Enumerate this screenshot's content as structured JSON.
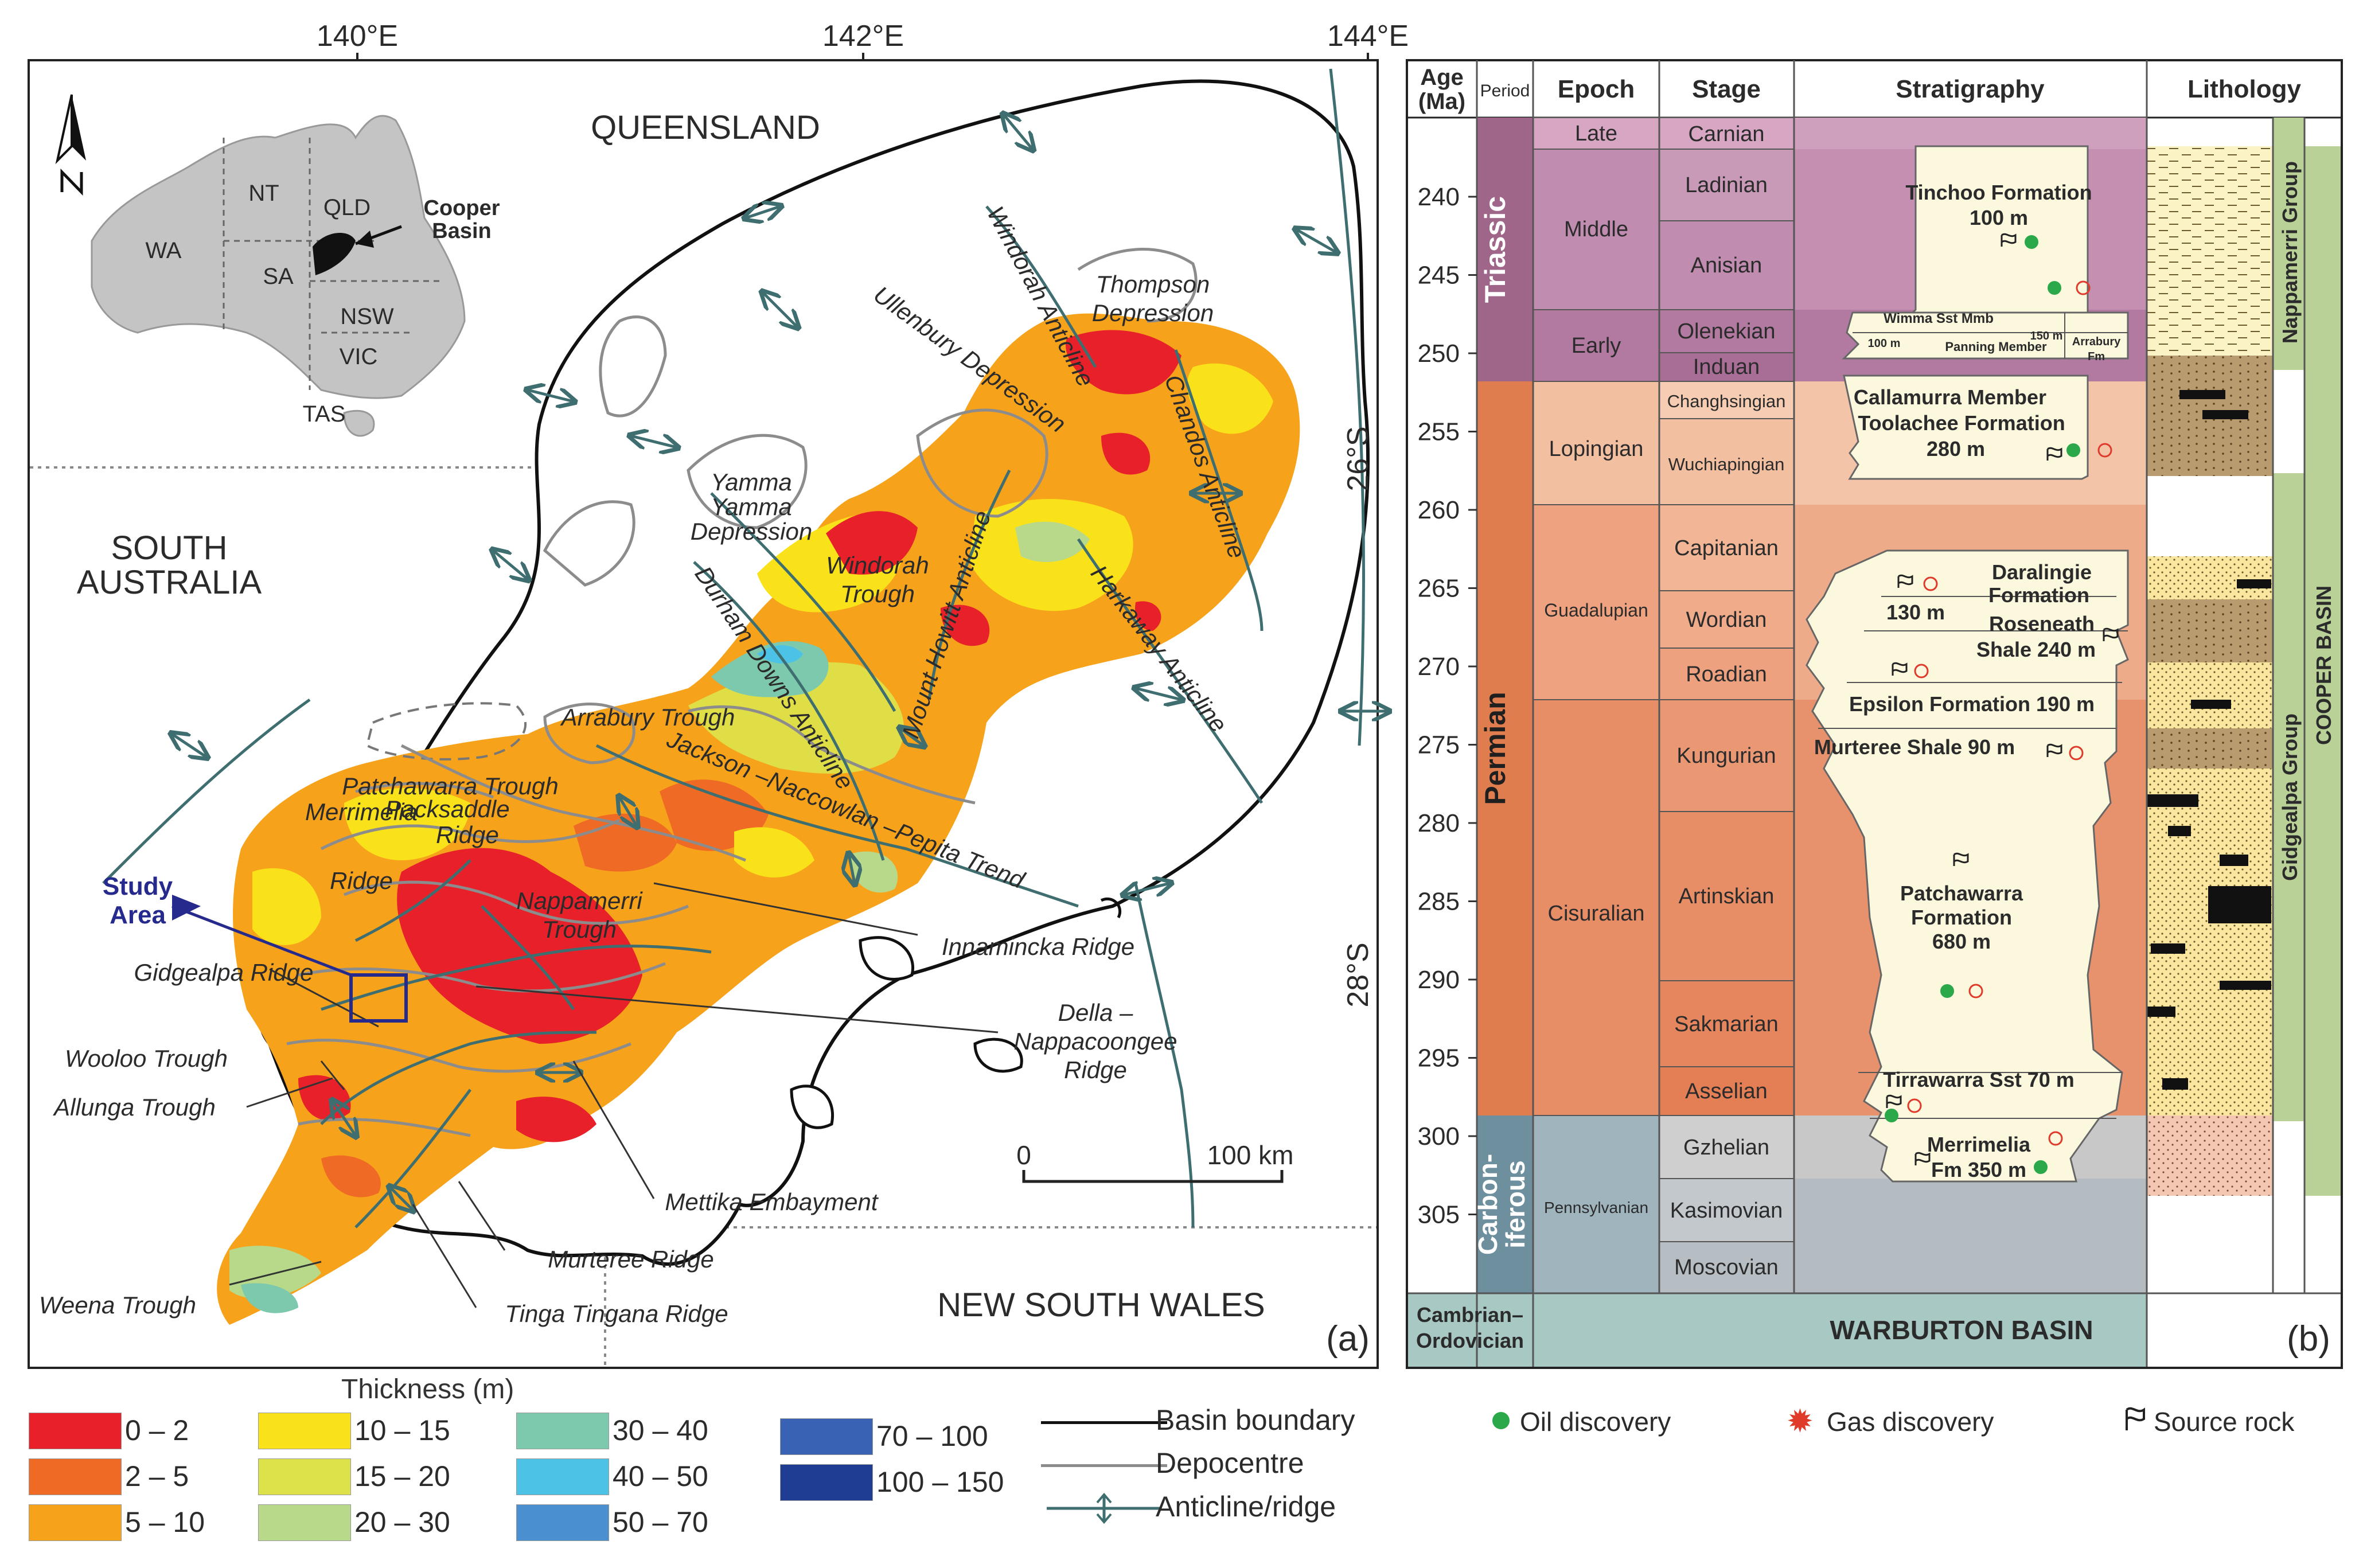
{
  "panel_a": {
    "label": "(a)",
    "lon_ticks": [
      "140°E",
      "142°E",
      "144°E"
    ],
    "lat_ticks": [
      "26°S",
      "28°S"
    ],
    "regions": {
      "queensland": "QUEENSLAND",
      "south_australia_1": "SOUTH",
      "south_australia_2": "AUSTRALIA",
      "nsw": "NEW SOUTH WALES"
    },
    "inset": {
      "states": [
        "WA",
        "NT",
        "QLD",
        "SA",
        "NSW",
        "VIC",
        "TAS"
      ],
      "cooper_label_1": "Cooper",
      "cooper_label_2": "Basin"
    },
    "study_area": [
      "Study",
      "Area"
    ],
    "scale": {
      "zero": "0",
      "end": "100 km"
    },
    "features": {
      "thompson": [
        "Thompson",
        "Depression"
      ],
      "windorah_anticline": "Windorah Anticline",
      "ullenbury": "Ullenbury Depression",
      "chandos": "Chandos Anticline",
      "yamma": [
        "Yamma",
        "Yamma",
        "Depression"
      ],
      "windorah_trough": [
        "Windorah",
        "Trough"
      ],
      "mount_howitt": "Mount Howitt Anticline",
      "harkaway": "Harkaway Anticline",
      "durham": "Durham Downs Anticline",
      "arrabury": "Arrabury Trough",
      "jackson": "Jackson –Naccowlan –Pepita Trend",
      "patchawarra": "Patchawarra Trough",
      "packsaddle": [
        "Packsaddle",
        "Ridge"
      ],
      "merrimelia": [
        "Merrimelia",
        "Ridge"
      ],
      "nappamerri": [
        "Nappamerri",
        "Trough"
      ],
      "innamincka": "Innamincka Ridge",
      "gidgealpa": "Gidgealpa Ridge",
      "della": [
        "Della –",
        "Nappacoongee",
        "Ridge"
      ],
      "wooloo": "Wooloo Trough",
      "allunga": "Allunga Trough",
      "mettika": "Mettika Embayment",
      "murteree": "Murteree Ridge",
      "tinga": "Tinga Tingana Ridge",
      "weena": "Weena Trough"
    }
  },
  "legend_thickness": {
    "title": "Thickness (m)",
    "classes": [
      {
        "label": "0 – 2",
        "color": "#e8202a"
      },
      {
        "label": "2 – 5",
        "color": "#ef6a24"
      },
      {
        "label": "5 – 10",
        "color": "#f7a21b"
      },
      {
        "label": "10 – 15",
        "color": "#f9e21a"
      },
      {
        "label": "15 – 20",
        "color": "#dde24a"
      },
      {
        "label": "20 – 30",
        "color": "#b9d98a"
      },
      {
        "label": "30 – 40",
        "color": "#7cc9ae"
      },
      {
        "label": "40 – 50",
        "color": "#4cc3e6"
      },
      {
        "label": "50 – 70",
        "color": "#4a8fd0"
      },
      {
        "label": "70 – 100",
        "color": "#3a62b4"
      },
      {
        "label": "100 – 150",
        "color": "#1f3e93"
      }
    ]
  },
  "legend_lines": {
    "basin": "Basin boundary",
    "depocentre": "Depocentre",
    "anticline": "Anticline/ridge"
  },
  "panel_b": {
    "label": "(b)",
    "headers": {
      "age": [
        "Age",
        "(Ma)"
      ],
      "period": "Period",
      "epoch": "Epoch",
      "stage": "Stage",
      "strat": "Stratigraphy",
      "lith": "Lithology"
    },
    "age_ticks": [
      240,
      245,
      250,
      255,
      260,
      265,
      270,
      275,
      280,
      285,
      290,
      295,
      300,
      305
    ],
    "periods": {
      "triassic": "Triassic",
      "permian": "Permian",
      "carb": [
        "Carbon-",
        "iferous"
      ],
      "cambro": [
        "Cambrian–",
        "Ordovician"
      ]
    },
    "epochs": {
      "late": "Late",
      "middle": "Middle",
      "early": "Early",
      "lopingian": "Lopingian",
      "guadalupian": "Guadalupian",
      "cisuralian": "Cisuralian",
      "penn": "Pennsylvanian"
    },
    "stages": [
      "Carnian",
      "Ladinian",
      "Anisian",
      "Olenekian",
      "Induan",
      "Changhsingian",
      "Wuchiapingian",
      "Capitanian",
      "Wordian",
      "Roadian",
      "Kungurian",
      "Artinskian",
      "Sakmarian",
      "Asselian",
      "Gzhelian",
      "Kasimovian",
      "Moscovian"
    ],
    "formations": {
      "tinchoo": [
        "Tinchoo Formation",
        "100 m"
      ],
      "wimma": "Wimma Sst Mmb",
      "wimma_150": "150 m",
      "wimma_100": "100 m",
      "panning": "Panning Member",
      "arrabury": [
        "Arrabury",
        "Fm"
      ],
      "callamurra": [
        "Callamurra Member",
        "Toolachee Formation",
        "280 m"
      ],
      "daralingie": [
        "Daralingie",
        "Formation"
      ],
      "d130": "130 m",
      "roseneath": [
        "Roseneath",
        "Shale 240 m"
      ],
      "epsilon": "Epsilon Formation 190 m",
      "murteree": "Murteree Shale 90 m",
      "patchawarra": [
        "Patchawarra",
        "Formation",
        "680 m"
      ],
      "tirrawarra": "Tirrawarra Sst 70 m",
      "merrimelia": [
        "Merrimelia",
        "Fm 350 m"
      ]
    },
    "warburton": "WARBURTON BASIN",
    "groups": {
      "nappamerri": "Nappamerri Group",
      "gidgealpa": "Gidgealpa Group",
      "cooper": "COOPER BASIN"
    }
  },
  "legend_b": {
    "oil": "Oil discovery",
    "gas": "Gas discovery",
    "source": "Source rock"
  },
  "colors": {
    "basin_line": "#1b1b1b",
    "depocentre": "#8c8c8c",
    "anticline": "#3f6e70",
    "triassic": "#a0668a",
    "permian": "#df7d4f",
    "carb": "#6d8f9e",
    "warburton": "#a8c8c4",
    "formation": "#fbf8de",
    "group_green": "#b9d197",
    "study": "#252a8c"
  }
}
